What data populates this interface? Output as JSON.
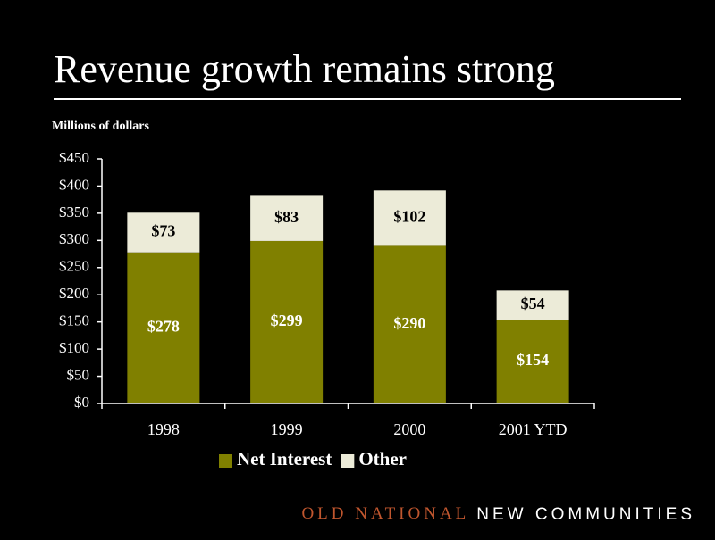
{
  "chart_data": {
    "type": "stacked_bar",
    "title": "Revenue growth remains strong",
    "subtitle": "Millions of dollars",
    "categories": [
      "1998",
      "1999",
      "2000",
      "2001 YTD"
    ],
    "series": [
      {
        "name": "Net Interest",
        "color": "#808000",
        "values": [
          278,
          299,
          290,
          154
        ],
        "value_labels": [
          "$278",
          "$299",
          "$290",
          "$154"
        ]
      },
      {
        "name": "Other",
        "color": "#ecebd8",
        "values": [
          73,
          83,
          102,
          54
        ],
        "value_labels": [
          "$73",
          "$83",
          "$102",
          "$54"
        ]
      }
    ],
    "ylim": [
      0,
      450
    ],
    "yticks": [
      {
        "value": 0,
        "label": "$0"
      },
      {
        "value": 50,
        "label": "$50"
      },
      {
        "value": 100,
        "label": "$100"
      },
      {
        "value": 150,
        "label": "$150"
      },
      {
        "value": 200,
        "label": "$200"
      },
      {
        "value": 250,
        "label": "$250"
      },
      {
        "value": 300,
        "label": "$300"
      },
      {
        "value": 350,
        "label": "$350"
      },
      {
        "value": 400,
        "label": "$400"
      },
      {
        "value": 450,
        "label": "$450"
      }
    ],
    "legend": "bottom"
  },
  "footer": {
    "brand": "OLD NATIONAL",
    "tagline": "NEW COMMUNITIES"
  }
}
